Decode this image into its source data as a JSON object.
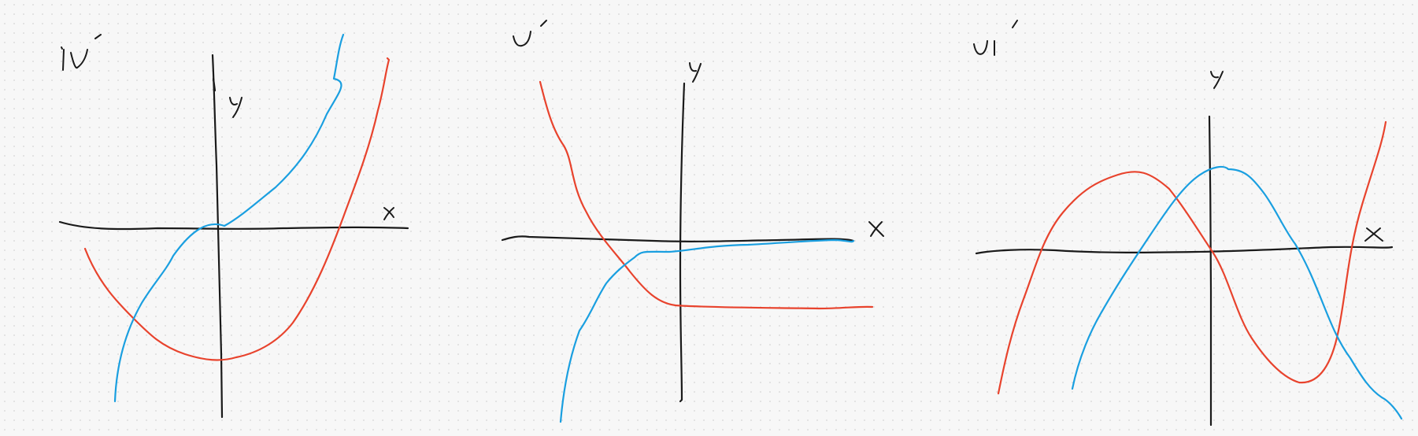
{
  "colors": {
    "ink": "#1a1a1a",
    "red": "#e8432d",
    "blue": "#1a9fe0"
  },
  "panels": [
    {
      "id": "iv",
      "label": "iv'",
      "curves": [
        "red",
        "blue"
      ]
    },
    {
      "id": "v",
      "label": "v'",
      "curves": [
        "red",
        "blue"
      ]
    },
    {
      "id": "vi",
      "label": "vi'",
      "curves": [
        "red",
        "blue"
      ]
    }
  ],
  "axis_labels": {
    "x": "x",
    "y": "y"
  }
}
